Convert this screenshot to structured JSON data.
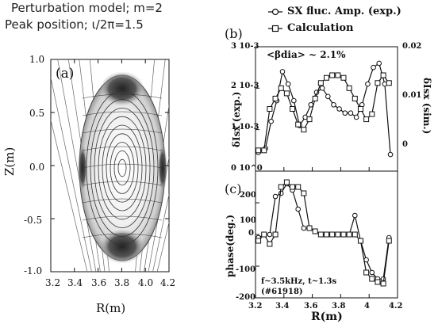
{
  "header": {
    "line1": "Perturbation model; m=2",
    "line2": "Peak position; ι/2π=1.5"
  },
  "panel_a": {
    "label": "(a)",
    "xlabel": "R(m)",
    "ylabel": "Z(m)",
    "xticks": [
      "3.2",
      "3.4",
      "3.6",
      "3.8",
      "4.0",
      "4.2"
    ],
    "yticks": [
      "1.0",
      "0.5",
      "0.0",
      "-0.5",
      "-1.0"
    ]
  },
  "panel_b": {
    "label": "(b)",
    "annotation": "<βdia> ~ 2.1%",
    "ylabel_left": "δIsx (exp.)",
    "ylabel_right": "δIsx (sim.)",
    "yticks_left": [
      "3 10-3",
      "2 10-3",
      "1 10-3",
      "0 10^0"
    ],
    "yticks_right": [
      "0.02",
      "0.01",
      "0"
    ]
  },
  "panel_c": {
    "label": "(c)",
    "ylabel": "phase(deg.)",
    "xlabel": "R(m)",
    "yticks": [
      "200",
      "100",
      "0",
      "-100",
      "-200"
    ],
    "xticks": [
      "3.2",
      "3.4",
      "3.6",
      "3.8",
      "4",
      "4.2"
    ],
    "note1": "f~3.5kHz, t~1.3s",
    "note2": "(#61918)"
  },
  "legend": {
    "exp": "SX fluc. Amp. (exp.)",
    "calc": "Calculation"
  },
  "chart_data": [
    {
      "type": "line",
      "panel": "b",
      "xlim": [
        3.2,
        4.2
      ],
      "ylim": [
        0,
        0.003
      ],
      "ylim_right": [
        -0.004,
        0.02
      ],
      "series": [
        {
          "name": "SX fluc. Amp. (exp.)",
          "axis": "left",
          "marker": "circle",
          "x": [
            3.22,
            3.27,
            3.31,
            3.35,
            3.39,
            3.43,
            3.47,
            3.51,
            3.55,
            3.59,
            3.63,
            3.67,
            3.71,
            3.75,
            3.79,
            3.83,
            3.87,
            3.91,
            3.95,
            3.99,
            4.03,
            4.07,
            4.11,
            4.15
          ],
          "y": [
            0.00045,
            0.00055,
            0.0012,
            0.0017,
            0.0024,
            0.0021,
            0.0017,
            0.0011,
            0.0013,
            0.0016,
            0.0019,
            0.002,
            0.0018,
            0.0016,
            0.0015,
            0.0014,
            0.0014,
            0.0013,
            0.0016,
            0.0021,
            0.0025,
            0.0026,
            0.0021,
            0.0004
          ]
        },
        {
          "name": "Calculation",
          "axis": "right",
          "marker": "square",
          "x": [
            3.22,
            3.26,
            3.3,
            3.34,
            3.38,
            3.42,
            3.46,
            3.5,
            3.54,
            3.58,
            3.62,
            3.66,
            3.7,
            3.74,
            3.78,
            3.82,
            3.86,
            3.9,
            3.94,
            3.98,
            4.02,
            4.06,
            4.1,
            4.14
          ],
          "y": [
            0.0,
            0.0,
            0.008,
            0.01,
            0.012,
            0.011,
            0.008,
            0.005,
            0.004,
            0.006,
            0.01,
            0.013,
            0.014,
            0.0145,
            0.0145,
            0.014,
            0.012,
            0.01,
            0.008,
            0.006,
            0.007,
            0.013,
            0.0145,
            0.013
          ]
        }
      ]
    },
    {
      "type": "line",
      "panel": "c",
      "xlim": [
        3.2,
        4.2
      ],
      "ylim": [
        -200,
        200
      ],
      "series": [
        {
          "name": "SX fluc. Amp. (exp.)",
          "marker": "circle",
          "x": [
            3.22,
            3.26,
            3.3,
            3.34,
            3.38,
            3.42,
            3.46,
            3.5,
            3.54,
            3.58,
            3.62,
            3.66,
            3.7,
            3.74,
            3.78,
            3.82,
            3.86,
            3.9,
            3.94,
            3.98,
            4.02,
            4.06,
            4.1,
            4.14
          ],
          "y": [
            -10,
            0,
            0,
            120,
            130,
            160,
            140,
            80,
            20,
            20,
            10,
            0,
            0,
            0,
            0,
            0,
            0,
            60,
            -20,
            -80,
            -120,
            -140,
            -140,
            -10
          ]
        },
        {
          "name": "Calculation",
          "marker": "square",
          "x": [
            3.22,
            3.26,
            3.3,
            3.34,
            3.38,
            3.42,
            3.46,
            3.5,
            3.54,
            3.58,
            3.62,
            3.66,
            3.7,
            3.74,
            3.78,
            3.82,
            3.86,
            3.9,
            3.94,
            3.98,
            4.02,
            4.06,
            4.1,
            4.14
          ],
          "y": [
            -20,
            0,
            -30,
            0,
            150,
            165,
            150,
            150,
            130,
            20,
            10,
            0,
            0,
            0,
            0,
            0,
            0,
            0,
            -20,
            -120,
            -140,
            -150,
            -155,
            -20
          ]
        }
      ]
    }
  ]
}
